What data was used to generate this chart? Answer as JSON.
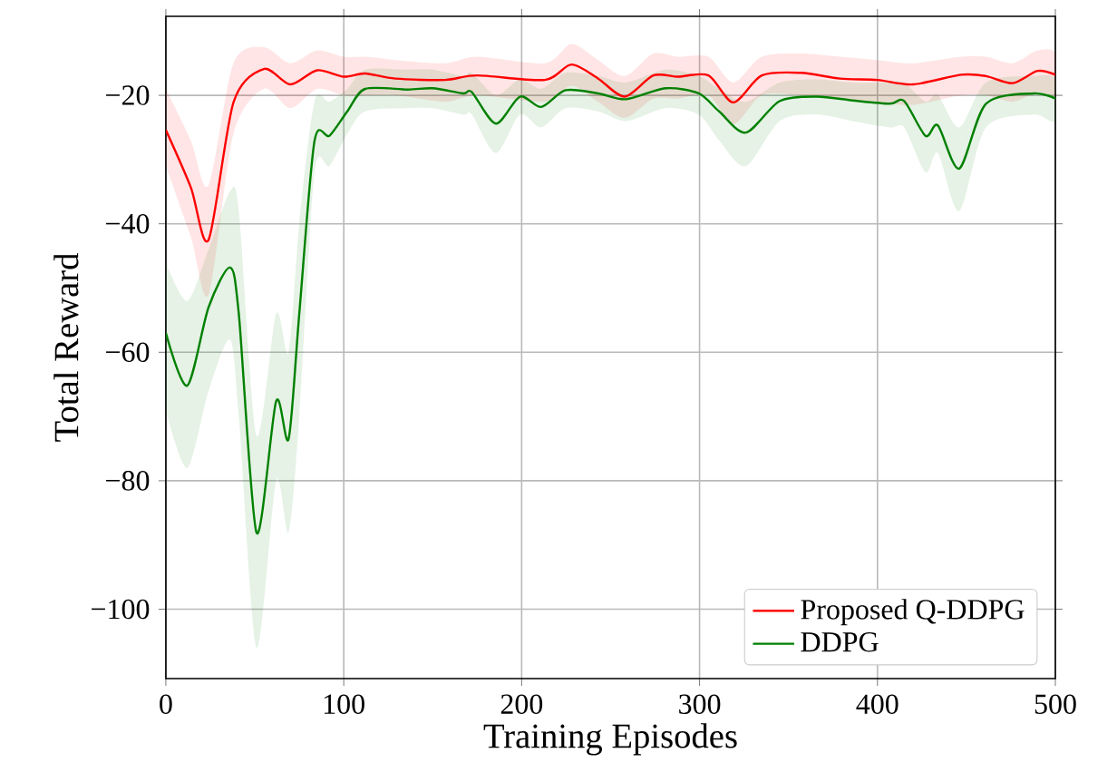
{
  "chart_data": {
    "type": "line",
    "xlabel": "Training Episodes",
    "ylabel": "Total Reward",
    "xlim": [
      0,
      500
    ],
    "ylim": [
      -110.8,
      -7.7
    ],
    "xticks": [
      0,
      100,
      200,
      300,
      400,
      500
    ],
    "yticks": [
      {
        "value": -100,
        "label": "−100"
      },
      {
        "value": -80,
        "label": "−80"
      },
      {
        "value": -60,
        "label": "−60"
      },
      {
        "value": -40,
        "label": "−40"
      },
      {
        "value": -20,
        "label": "−20"
      }
    ],
    "grid": true,
    "legend": "bottom right",
    "marker": "none",
    "line_style": "solid",
    "series": [
      {
        "name": "Proposed Q-DDPG",
        "color": "#ff0000",
        "x": [
          0,
          14,
          24,
          38,
          55,
          70,
          85,
          100,
          112,
          129,
          157,
          175,
          213,
          228,
          243,
          258,
          274,
          288,
          305,
          319,
          335,
          357,
          379,
          400,
          420,
          447,
          461,
          476,
          490,
          500
        ],
        "values": [
          -25.4,
          -34.3,
          -42.5,
          -21.1,
          -15.9,
          -18.3,
          -16.1,
          -17.1,
          -16.6,
          -17.4,
          -17.6,
          -16.9,
          -17.6,
          -15.2,
          -17.4,
          -20.2,
          -16.9,
          -17.1,
          -16.9,
          -21.1,
          -16.9,
          -16.5,
          -17.4,
          -17.6,
          -18.3,
          -16.8,
          -17.0,
          -18.1,
          -16.2,
          -16.8
        ],
        "lower": [
          -31,
          -42,
          -51,
          -26,
          -19,
          -22,
          -19,
          -20,
          -20,
          -20,
          -21,
          -20,
          -21,
          -18.5,
          -21,
          -23.5,
          -20.5,
          -20.5,
          -20,
          -24.5,
          -20,
          -20,
          -20.5,
          -21,
          -21.5,
          -20,
          -20,
          -21,
          -19.5,
          -20
        ],
        "upper": [
          -19,
          -27,
          -34,
          -15,
          -12.5,
          -15,
          -13,
          -14,
          -14,
          -14.5,
          -15,
          -14,
          -15,
          -12,
          -14.5,
          -17,
          -13.5,
          -14,
          -14,
          -18,
          -14,
          -13.5,
          -14,
          -14.5,
          -15,
          -14,
          -14,
          -15,
          -13,
          -13.5
        ]
      },
      {
        "name": "DDPG",
        "color": "#008000",
        "x": [
          0,
          12,
          24,
          36,
          41,
          51,
          62,
          69,
          75,
          83.5,
          92,
          102,
          112,
          136,
          150,
          167,
          172,
          185.5,
          199,
          211,
          224.7,
          243,
          258.7,
          281,
          299.5,
          311,
          326,
          345,
          366,
          386,
          407,
          415,
          427,
          434,
          446,
          461,
          488,
          500
        ],
        "values": [
          -57.0,
          -65.2,
          -53.0,
          -46.8,
          -54.0,
          -88.1,
          -67.6,
          -73.5,
          -54.0,
          -27.2,
          -26.3,
          -22.5,
          -19.0,
          -19.1,
          -18.9,
          -19.7,
          -19.5,
          -24.4,
          -20.2,
          -21.8,
          -19.2,
          -19.7,
          -20.6,
          -18.9,
          -19.7,
          -22.5,
          -25.8,
          -20.9,
          -20.2,
          -20.8,
          -21.3,
          -20.9,
          -26.3,
          -24.7,
          -31.4,
          -21.3,
          -19.7,
          -20.5
        ],
        "lower": [
          -69,
          -78,
          -66,
          -58,
          -70,
          -106,
          -80,
          -88,
          -70,
          -32,
          -31,
          -26,
          -22.5,
          -22,
          -22,
          -23,
          -23,
          -29,
          -23,
          -25,
          -22,
          -22.5,
          -24,
          -22,
          -23,
          -27,
          -31,
          -24,
          -23,
          -24,
          -25,
          -25,
          -32,
          -29,
          -38,
          -25,
          -23,
          -24
        ],
        "upper": [
          -46,
          -52,
          -44,
          -35,
          -38,
          -73,
          -54,
          -60,
          -40,
          -21,
          -21,
          -19,
          -16,
          -16,
          -16,
          -17,
          -16.5,
          -20,
          -17.5,
          -19,
          -16.5,
          -17,
          -18,
          -16,
          -17,
          -19,
          -21,
          -18,
          -17.5,
          -18,
          -18,
          -18,
          -21,
          -20,
          -25,
          -18,
          -17,
          -17.5
        ]
      }
    ]
  }
}
